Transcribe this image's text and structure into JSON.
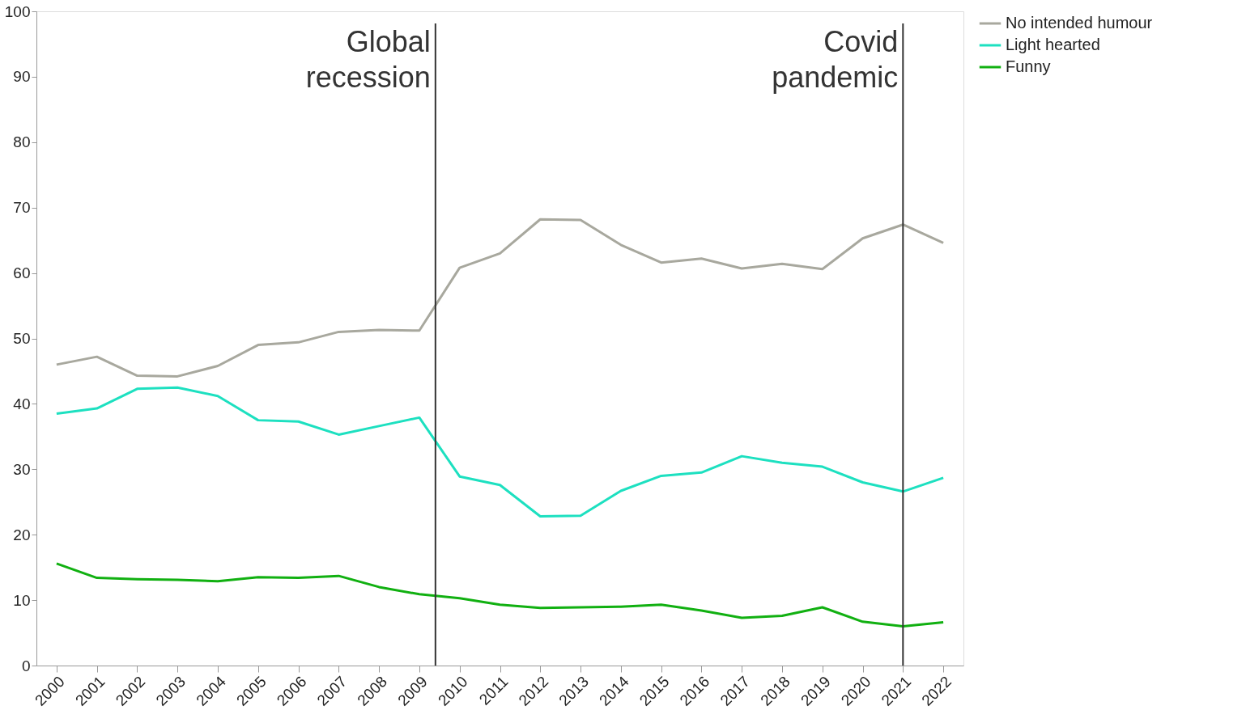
{
  "chart_data": {
    "type": "line",
    "x": [
      2000,
      2001,
      2002,
      2003,
      2004,
      2005,
      2006,
      2007,
      2008,
      2009,
      2010,
      2011,
      2012,
      2013,
      2014,
      2015,
      2016,
      2017,
      2018,
      2019,
      2020,
      2021,
      2022
    ],
    "xlim": [
      1999.5,
      2022.5
    ],
    "xticks": [
      2000,
      2001,
      2002,
      2003,
      2004,
      2005,
      2006,
      2007,
      2008,
      2009,
      2010,
      2011,
      2012,
      2013,
      2014,
      2015,
      2016,
      2017,
      2018,
      2019,
      2020,
      2021,
      2022
    ],
    "ylim": [
      0,
      100
    ],
    "yticks": [
      0,
      10,
      20,
      30,
      40,
      50,
      60,
      70,
      80,
      90,
      100
    ],
    "grid": false,
    "legend": "right",
    "line_style": "solid",
    "marker": "none",
    "series": [
      {
        "name": "No intended humour",
        "color": "#a8a89e",
        "values": [
          46,
          47.2,
          44.3,
          44.2,
          45.8,
          49,
          49.4,
          51,
          51.3,
          51.2,
          60.8,
          63,
          68.2,
          68.1,
          64.3,
          61.6,
          62.2,
          60.7,
          61.4,
          60.6,
          65.3,
          67.4,
          64.6
        ]
      },
      {
        "name": "Light hearted",
        "color": "#1de0c0",
        "values": [
          38.5,
          39.3,
          42.3,
          42.5,
          41.2,
          37.5,
          37.3,
          35.3,
          36.6,
          37.9,
          28.9,
          27.6,
          22.8,
          22.9,
          26.7,
          29,
          29.5,
          32,
          31,
          30.4,
          28,
          26.6,
          28.7
        ]
      },
      {
        "name": "Funny",
        "color": "#11b011",
        "values": [
          15.6,
          13.4,
          13.2,
          13.1,
          12.9,
          13.5,
          13.4,
          13.7,
          12,
          10.9,
          10.3,
          9.3,
          8.8,
          8.9,
          9,
          9.3,
          8.4,
          7.3,
          7.6,
          8.9,
          6.7,
          6,
          6.6
        ]
      }
    ],
    "ref_lines": [
      {
        "axis": "x",
        "value": 2009.4,
        "label": "Global recession",
        "color": "#333333"
      },
      {
        "axis": "x",
        "value": 2021,
        "label": "Covid pandemic",
        "color": "#333333"
      }
    ]
  }
}
